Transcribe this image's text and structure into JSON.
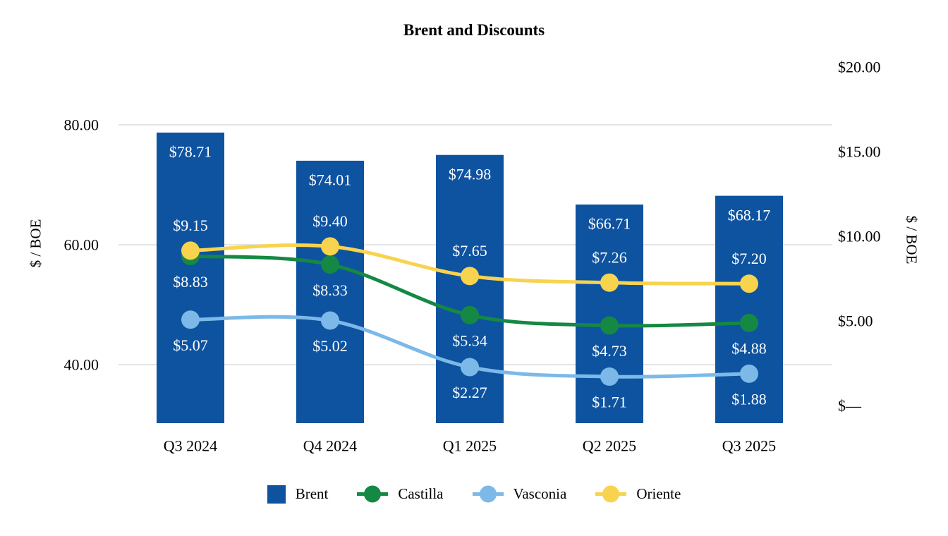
{
  "title": "Brent and Discounts",
  "left_axis": {
    "title": "$ / BOE",
    "ticks": [
      {
        "label": "80.00",
        "value": 80
      },
      {
        "label": "60.00",
        "value": 60
      },
      {
        "label": "40.00",
        "value": 40
      }
    ],
    "min": 30,
    "max": 90,
    "gridline_values": [
      80,
      60,
      40
    ]
  },
  "right_axis": {
    "title": "$ / BOE",
    "ticks": [
      {
        "label": "$20.00",
        "value": 20
      },
      {
        "label": "$15.00",
        "value": 15
      },
      {
        "label": "$10.00",
        "value": 10
      },
      {
        "label": "$5.00",
        "value": 5
      },
      {
        "label": "$—",
        "value": 0
      }
    ],
    "min": 0,
    "max": 20
  },
  "chart_data": {
    "type": "bar",
    "subtype": "bar-line combo, bars on left axis, smoothed marker lines on right axis",
    "title": "Brent and Discounts",
    "categories": [
      "Q3 2024",
      "Q4 2024",
      "Q1 2025",
      "Q2 2025",
      "Q3 2025"
    ],
    "bar_series": {
      "name": "Brent",
      "axis": "left",
      "color": "#0E53A0",
      "values": [
        78.71,
        74.01,
        74.98,
        66.71,
        68.17
      ],
      "labels": [
        "$78.71",
        "$74.01",
        "$74.98",
        "$66.71",
        "$68.17"
      ],
      "label_color": "#FFFFFF",
      "label_position": "inside-top"
    },
    "line_series": [
      {
        "name": "Castilla",
        "axis": "right",
        "color": "#158843",
        "values": [
          8.83,
          8.33,
          5.34,
          4.73,
          4.88
        ],
        "labels": [
          "$8.83",
          "$8.33",
          "$5.34",
          "$4.73",
          "$4.88"
        ],
        "label_position": "below",
        "label_color": "#FFFFFF"
      },
      {
        "name": "Vasconia",
        "axis": "right",
        "color": "#7CB9E8",
        "values": [
          5.07,
          5.02,
          2.27,
          1.71,
          1.88
        ],
        "labels": [
          "$5.07",
          "$5.02",
          "$2.27",
          "$1.71",
          "$1.88"
        ],
        "label_position": "below",
        "label_color": "#FFFFFF"
      },
      {
        "name": "Oriente",
        "axis": "right",
        "color": "#F8D34E",
        "values": [
          9.15,
          9.4,
          7.65,
          7.26,
          7.2
        ],
        "labels": [
          "$9.15",
          "$9.40",
          "$7.65",
          "$7.26",
          "$7.20"
        ],
        "label_position": "above",
        "label_color": "#FFFFFF"
      }
    ],
    "xlabel": "",
    "ylabel_left": "$ / BOE",
    "ylabel_right": "$ / BOE",
    "ylim_left": [
      30,
      90
    ],
    "ylim_right": [
      0,
      20
    ],
    "grid": true,
    "legend_position": "bottom"
  },
  "legend": {
    "items": [
      {
        "label": "Brent",
        "swatch": "square",
        "color": "#0E53A0"
      },
      {
        "label": "Castilla",
        "swatch": "line-marker",
        "color": "#158843"
      },
      {
        "label": "Vasconia",
        "swatch": "line-marker",
        "color": "#7CB9E8"
      },
      {
        "label": "Oriente",
        "swatch": "line-marker",
        "color": "#F8D34E"
      }
    ]
  },
  "colors": {
    "gridline": "#DCDCDC",
    "text": "#000000",
    "background": "#FFFFFF"
  }
}
